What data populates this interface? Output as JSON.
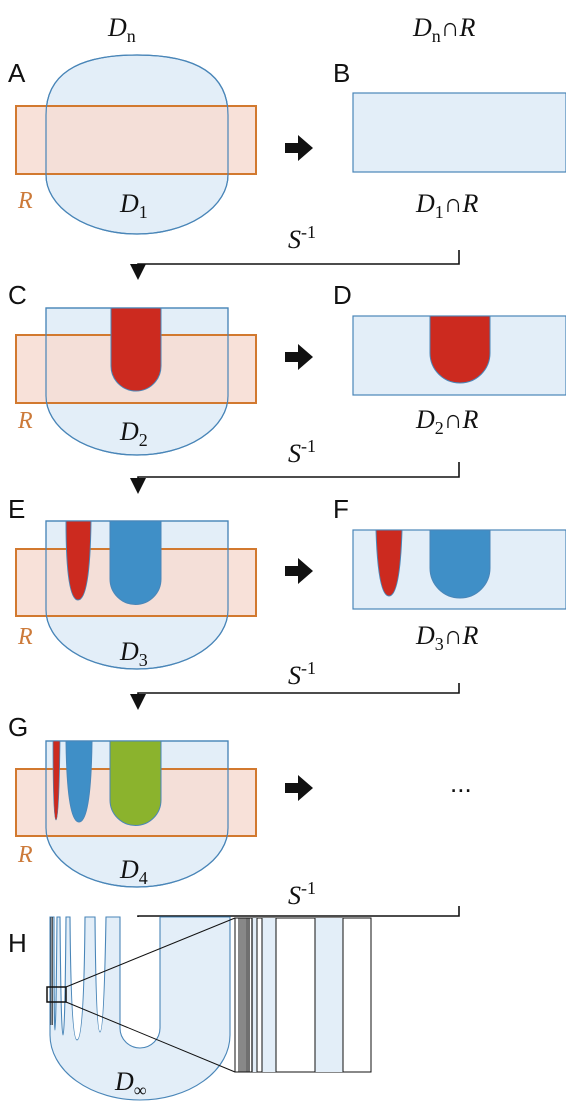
{
  "header": {
    "left_symbol": "D",
    "left_sub": "n",
    "right_symbol": "D",
    "right_sub": "n",
    "right_cap": "∩R"
  },
  "panels": {
    "A": "A",
    "B": "B",
    "C": "C",
    "D": "D",
    "E": "E",
    "F": "F",
    "G": "G",
    "H": "H"
  },
  "domain_labels": {
    "d1": {
      "sym": "D",
      "sub": "1"
    },
    "d2": {
      "sym": "D",
      "sub": "2"
    },
    "d3": {
      "sym": "D",
      "sub": "3"
    },
    "d4": {
      "sym": "D",
      "sub": "4"
    },
    "dinf": {
      "sym": "D",
      "sub": "∞"
    }
  },
  "intersection_labels": {
    "b": {
      "sym": "D",
      "sub": "1",
      "cap": "∩R"
    },
    "d": {
      "sym": "D",
      "sub": "2",
      "cap": "∩R"
    },
    "f": {
      "sym": "D",
      "sub": "3",
      "cap": "∩R"
    }
  },
  "r_label": "R",
  "map_label": {
    "sym": "S",
    "sup": "-1"
  },
  "ellipsis": "...",
  "colors": {
    "domain_fill": "#e3eef8",
    "domain_stroke": "#4a86b8",
    "rect_fill": "#f7dcd2",
    "rect_stroke": "#d2792f",
    "red": "#cc2a1f",
    "blue": "#3f8fc7",
    "green": "#8bb32d"
  }
}
